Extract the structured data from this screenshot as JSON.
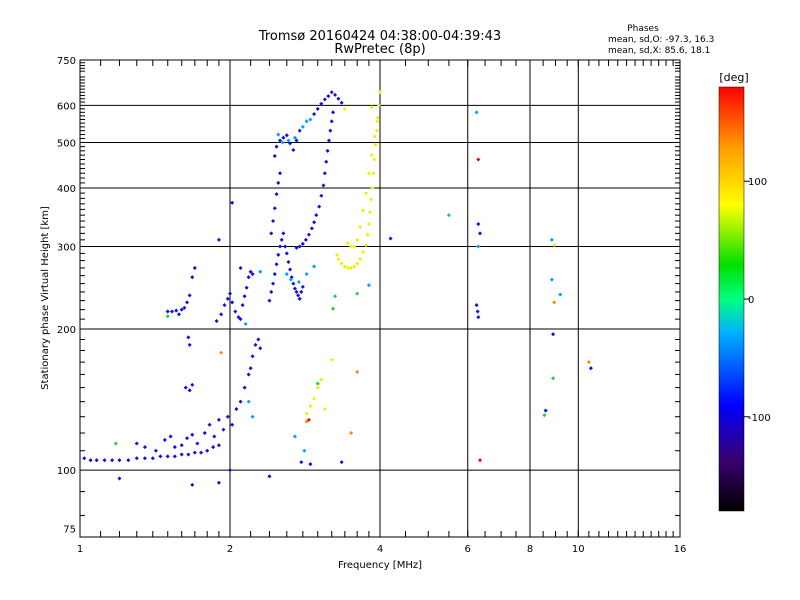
{
  "title_line1": "Tromsø 20160424 04:38:00-04:39:43",
  "title_line2": "RwPretec (8p)",
  "phase_box": {
    "heading": "Phases",
    "line1": "mean, sd,O: -97.3, 16.3",
    "line2": "mean, sd,X:  85.6, 18.1"
  },
  "colorbar": {
    "unit_label": "[deg]",
    "range": [
      -180,
      180
    ],
    "ticks": [
      {
        "value": 100,
        "label": "100"
      },
      {
        "value": 0,
        "label": "0"
      },
      {
        "value": -100,
        "label": "-100"
      }
    ],
    "colors": [
      "#000000",
      "#3a0070",
      "#0000ff",
      "#00b0ff",
      "#00ff80",
      "#00e000",
      "#ffff00",
      "#ff9a00",
      "#ff0000"
    ]
  },
  "chart_data": {
    "type": "scatter",
    "xlabel": "Frequency [MHz]",
    "ylabel": "Stationary phase Virtual Height [km]",
    "xscale": "log2",
    "yscale": "log",
    "xlim": [
      1,
      16
    ],
    "ylim": [
      72,
      750
    ],
    "xticks": [
      {
        "value": 1,
        "label": "1"
      },
      {
        "value": 2,
        "label": "2"
      },
      {
        "value": 4,
        "label": "4"
      },
      {
        "value": 6,
        "label": "6"
      },
      {
        "value": 8,
        "label": "8"
      },
      {
        "value": 10,
        "label": "10"
      },
      {
        "value": 16,
        "label": "16"
      }
    ],
    "yticks": [
      {
        "value": 75,
        "label": "75"
      },
      {
        "value": 100,
        "label": "100"
      },
      {
        "value": 200,
        "label": "200"
      },
      {
        "value": 300,
        "label": "300"
      },
      {
        "value": 400,
        "label": "400"
      },
      {
        "value": 500,
        "label": "500"
      },
      {
        "value": 600,
        "label": "600"
      },
      {
        "value": 750,
        "label": "750"
      }
    ],
    "grid_major_x": [
      2,
      4,
      6,
      8,
      10
    ],
    "grid_major_y": [
      100,
      200,
      300,
      400,
      500,
      600
    ],
    "series": [
      {
        "color": "#1010e0",
        "points": [
          [
            1.02,
            106
          ],
          [
            1.05,
            105
          ],
          [
            1.08,
            105
          ],
          [
            1.12,
            105
          ],
          [
            1.16,
            105
          ],
          [
            1.2,
            105
          ],
          [
            1.25,
            105
          ],
          [
            1.3,
            106
          ],
          [
            1.35,
            106
          ],
          [
            1.4,
            106
          ],
          [
            1.45,
            107
          ],
          [
            1.5,
            107
          ],
          [
            1.55,
            107
          ],
          [
            1.6,
            108
          ],
          [
            1.65,
            108
          ],
          [
            1.7,
            109
          ],
          [
            1.75,
            109
          ],
          [
            1.8,
            110
          ],
          [
            1.85,
            112
          ],
          [
            1.9,
            113
          ],
          [
            1.3,
            114
          ],
          [
            1.35,
            112
          ],
          [
            1.42,
            110
          ],
          [
            1.48,
            116
          ],
          [
            1.52,
            118
          ],
          [
            1.55,
            112
          ],
          [
            1.6,
            113
          ],
          [
            1.64,
            117
          ],
          [
            1.68,
            119
          ],
          [
            1.72,
            114
          ],
          [
            1.78,
            120
          ],
          [
            1.82,
            125
          ],
          [
            1.86,
            118
          ],
          [
            1.9,
            128
          ],
          [
            1.94,
            122
          ],
          [
            1.98,
            130
          ],
          [
            2.02,
            125
          ],
          [
            2.06,
            135
          ],
          [
            2.1,
            140
          ],
          [
            2.14,
            150
          ],
          [
            2.18,
            160
          ],
          [
            2.2,
            165
          ],
          [
            2.22,
            175
          ],
          [
            2.25,
            185
          ],
          [
            2.28,
            190
          ],
          [
            2.3,
            182
          ],
          [
            1.5,
            218
          ],
          [
            1.53,
            218
          ],
          [
            1.56,
            219
          ],
          [
            1.58,
            215
          ],
          [
            1.6,
            220
          ],
          [
            1.62,
            222
          ],
          [
            1.64,
            228
          ],
          [
            1.66,
            236
          ],
          [
            1.68,
            258
          ],
          [
            1.7,
            270
          ],
          [
            1.65,
            192
          ],
          [
            1.66,
            185
          ],
          [
            1.63,
            150
          ],
          [
            1.66,
            148
          ],
          [
            1.68,
            152
          ],
          [
            1.88,
            208
          ],
          [
            1.92,
            215
          ],
          [
            1.95,
            225
          ],
          [
            1.98,
            232
          ],
          [
            2.0,
            238
          ],
          [
            2.02,
            228
          ],
          [
            2.05,
            218
          ],
          [
            2.08,
            212
          ],
          [
            2.1,
            210
          ],
          [
            2.12,
            225
          ],
          [
            2.14,
            235
          ],
          [
            2.16,
            245
          ],
          [
            2.18,
            258
          ],
          [
            2.2,
            265
          ],
          [
            2.22,
            262
          ],
          [
            2.4,
            230
          ],
          [
            2.42,
            240
          ],
          [
            2.44,
            250
          ],
          [
            2.46,
            262
          ],
          [
            2.48,
            275
          ],
          [
            2.5,
            288
          ],
          [
            2.52,
            300
          ],
          [
            2.54,
            310
          ],
          [
            2.56,
            320
          ],
          [
            2.58,
            300
          ],
          [
            2.6,
            290
          ],
          [
            2.62,
            278
          ],
          [
            2.64,
            268
          ],
          [
            2.66,
            258
          ],
          [
            2.68,
            250
          ],
          [
            2.7,
            244
          ],
          [
            2.72,
            240
          ],
          [
            2.74,
            236
          ],
          [
            2.76,
            232
          ],
          [
            2.78,
            240
          ],
          [
            2.8,
            246
          ],
          [
            2.42,
            320
          ],
          [
            2.44,
            340
          ],
          [
            2.46,
            362
          ],
          [
            2.48,
            388
          ],
          [
            2.5,
            410
          ],
          [
            2.52,
            430
          ],
          [
            2.46,
            468
          ],
          [
            2.48,
            490
          ],
          [
            2.52,
            505
          ],
          [
            2.56,
            512
          ],
          [
            2.6,
            518
          ],
          [
            2.64,
            498
          ],
          [
            2.68,
            482
          ],
          [
            2.72,
            505
          ],
          [
            2.76,
            530
          ],
          [
            2.95,
            575
          ],
          [
            3.0,
            590
          ],
          [
            3.05,
            605
          ],
          [
            3.1,
            618
          ],
          [
            3.15,
            628
          ],
          [
            3.2,
            640
          ],
          [
            3.25,
            632
          ],
          [
            3.3,
            620
          ],
          [
            3.35,
            608
          ],
          [
            3.22,
            580
          ],
          [
            3.2,
            555
          ],
          [
            3.18,
            530
          ],
          [
            3.16,
            505
          ],
          [
            3.14,
            480
          ],
          [
            3.12,
            455
          ],
          [
            3.1,
            430
          ],
          [
            3.08,
            405
          ],
          [
            3.05,
            385
          ],
          [
            3.02,
            365
          ],
          [
            2.98,
            350
          ],
          [
            2.95,
            338
          ],
          [
            2.92,
            328
          ],
          [
            2.88,
            318
          ],
          [
            2.84,
            310
          ],
          [
            2.8,
            304
          ],
          [
            2.76,
            300
          ],
          [
            2.72,
            298
          ],
          [
            1.9,
            310
          ],
          [
            2.02,
            372
          ],
          [
            2.1,
            270
          ],
          [
            1.2,
            96
          ],
          [
            1.68,
            93
          ],
          [
            1.9,
            94
          ],
          [
            2.0,
            100
          ],
          [
            2.4,
            97
          ],
          [
            2.78,
            104
          ],
          [
            2.9,
            103
          ],
          [
            3.35,
            104
          ],
          [
            4.2,
            312
          ],
          [
            6.3,
            335
          ],
          [
            6.35,
            320
          ],
          [
            6.25,
            225
          ],
          [
            6.28,
            218
          ],
          [
            6.3,
            212
          ],
          [
            8.6,
            134
          ],
          [
            8.9,
            195
          ],
          [
            10.6,
            165
          ]
        ]
      },
      {
        "color": "#00a0ff",
        "points": [
          [
            2.5,
            520
          ],
          [
            2.55,
            500
          ],
          [
            2.62,
            505
          ],
          [
            2.7,
            512
          ],
          [
            2.8,
            540
          ],
          [
            2.85,
            555
          ],
          [
            2.9,
            560
          ],
          [
            2.6,
            262
          ],
          [
            2.65,
            255
          ],
          [
            2.75,
            252
          ],
          [
            2.85,
            262
          ],
          [
            2.95,
            272
          ],
          [
            2.3,
            265
          ],
          [
            2.15,
            205
          ],
          [
            2.18,
            140
          ],
          [
            2.22,
            130
          ],
          [
            3.8,
            248
          ],
          [
            6.25,
            580
          ],
          [
            6.3,
            300
          ],
          [
            8.85,
            310
          ],
          [
            9.2,
            237
          ],
          [
            8.85,
            255
          ],
          [
            2.7,
            118
          ],
          [
            2.82,
            110
          ]
        ]
      },
      {
        "color": "#f0f000",
        "points": [
          [
            3.28,
            288
          ],
          [
            3.3,
            282
          ],
          [
            3.35,
            276
          ],
          [
            3.4,
            272
          ],
          [
            3.45,
            270
          ],
          [
            3.5,
            270
          ],
          [
            3.55,
            272
          ],
          [
            3.6,
            276
          ],
          [
            3.65,
            282
          ],
          [
            3.7,
            292
          ],
          [
            3.75,
            302
          ],
          [
            3.78,
            318
          ],
          [
            3.8,
            335
          ],
          [
            3.82,
            355
          ],
          [
            3.84,
            378
          ],
          [
            3.86,
            400
          ],
          [
            3.88,
            430
          ],
          [
            3.9,
            460
          ],
          [
            3.92,
            495
          ],
          [
            3.94,
            530
          ],
          [
            3.96,
            565
          ],
          [
            3.98,
            600
          ],
          [
            4.0,
            640
          ],
          [
            3.95,
            555
          ],
          [
            3.9,
            515
          ],
          [
            3.85,
            470
          ],
          [
            3.8,
            430
          ],
          [
            3.75,
            390
          ],
          [
            3.7,
            358
          ],
          [
            3.65,
            330
          ],
          [
            3.6,
            310
          ],
          [
            3.55,
            300
          ],
          [
            3.5,
            300
          ],
          [
            3.45,
            305
          ],
          [
            2.85,
            132
          ],
          [
            2.9,
            137
          ],
          [
            2.95,
            142
          ],
          [
            3.0,
            150
          ],
          [
            3.05,
            156
          ],
          [
            3.2,
            172
          ],
          [
            3.1,
            135
          ],
          [
            3.4,
            590
          ],
          [
            3.85,
            595
          ],
          [
            8.95,
            302
          ]
        ]
      },
      {
        "color": "#20d040",
        "points": [
          [
            1.18,
            114
          ],
          [
            1.5,
            213
          ],
          [
            3.22,
            221
          ],
          [
            3.25,
            235
          ],
          [
            3.6,
            238
          ],
          [
            5.5,
            350
          ],
          [
            8.9,
            157
          ],
          [
            8.55,
            131
          ],
          [
            3.0,
            153
          ]
        ]
      },
      {
        "color": "#ff8a00",
        "points": [
          [
            1.92,
            178
          ],
          [
            2.85,
            127
          ],
          [
            3.5,
            120
          ],
          [
            3.6,
            162
          ],
          [
            10.5,
            170
          ],
          [
            8.95,
            228
          ]
        ]
      },
      {
        "color": "#e01000",
        "points": [
          [
            6.3,
            460
          ],
          [
            6.35,
            105
          ],
          [
            2.88,
            128
          ]
        ]
      }
    ]
  }
}
